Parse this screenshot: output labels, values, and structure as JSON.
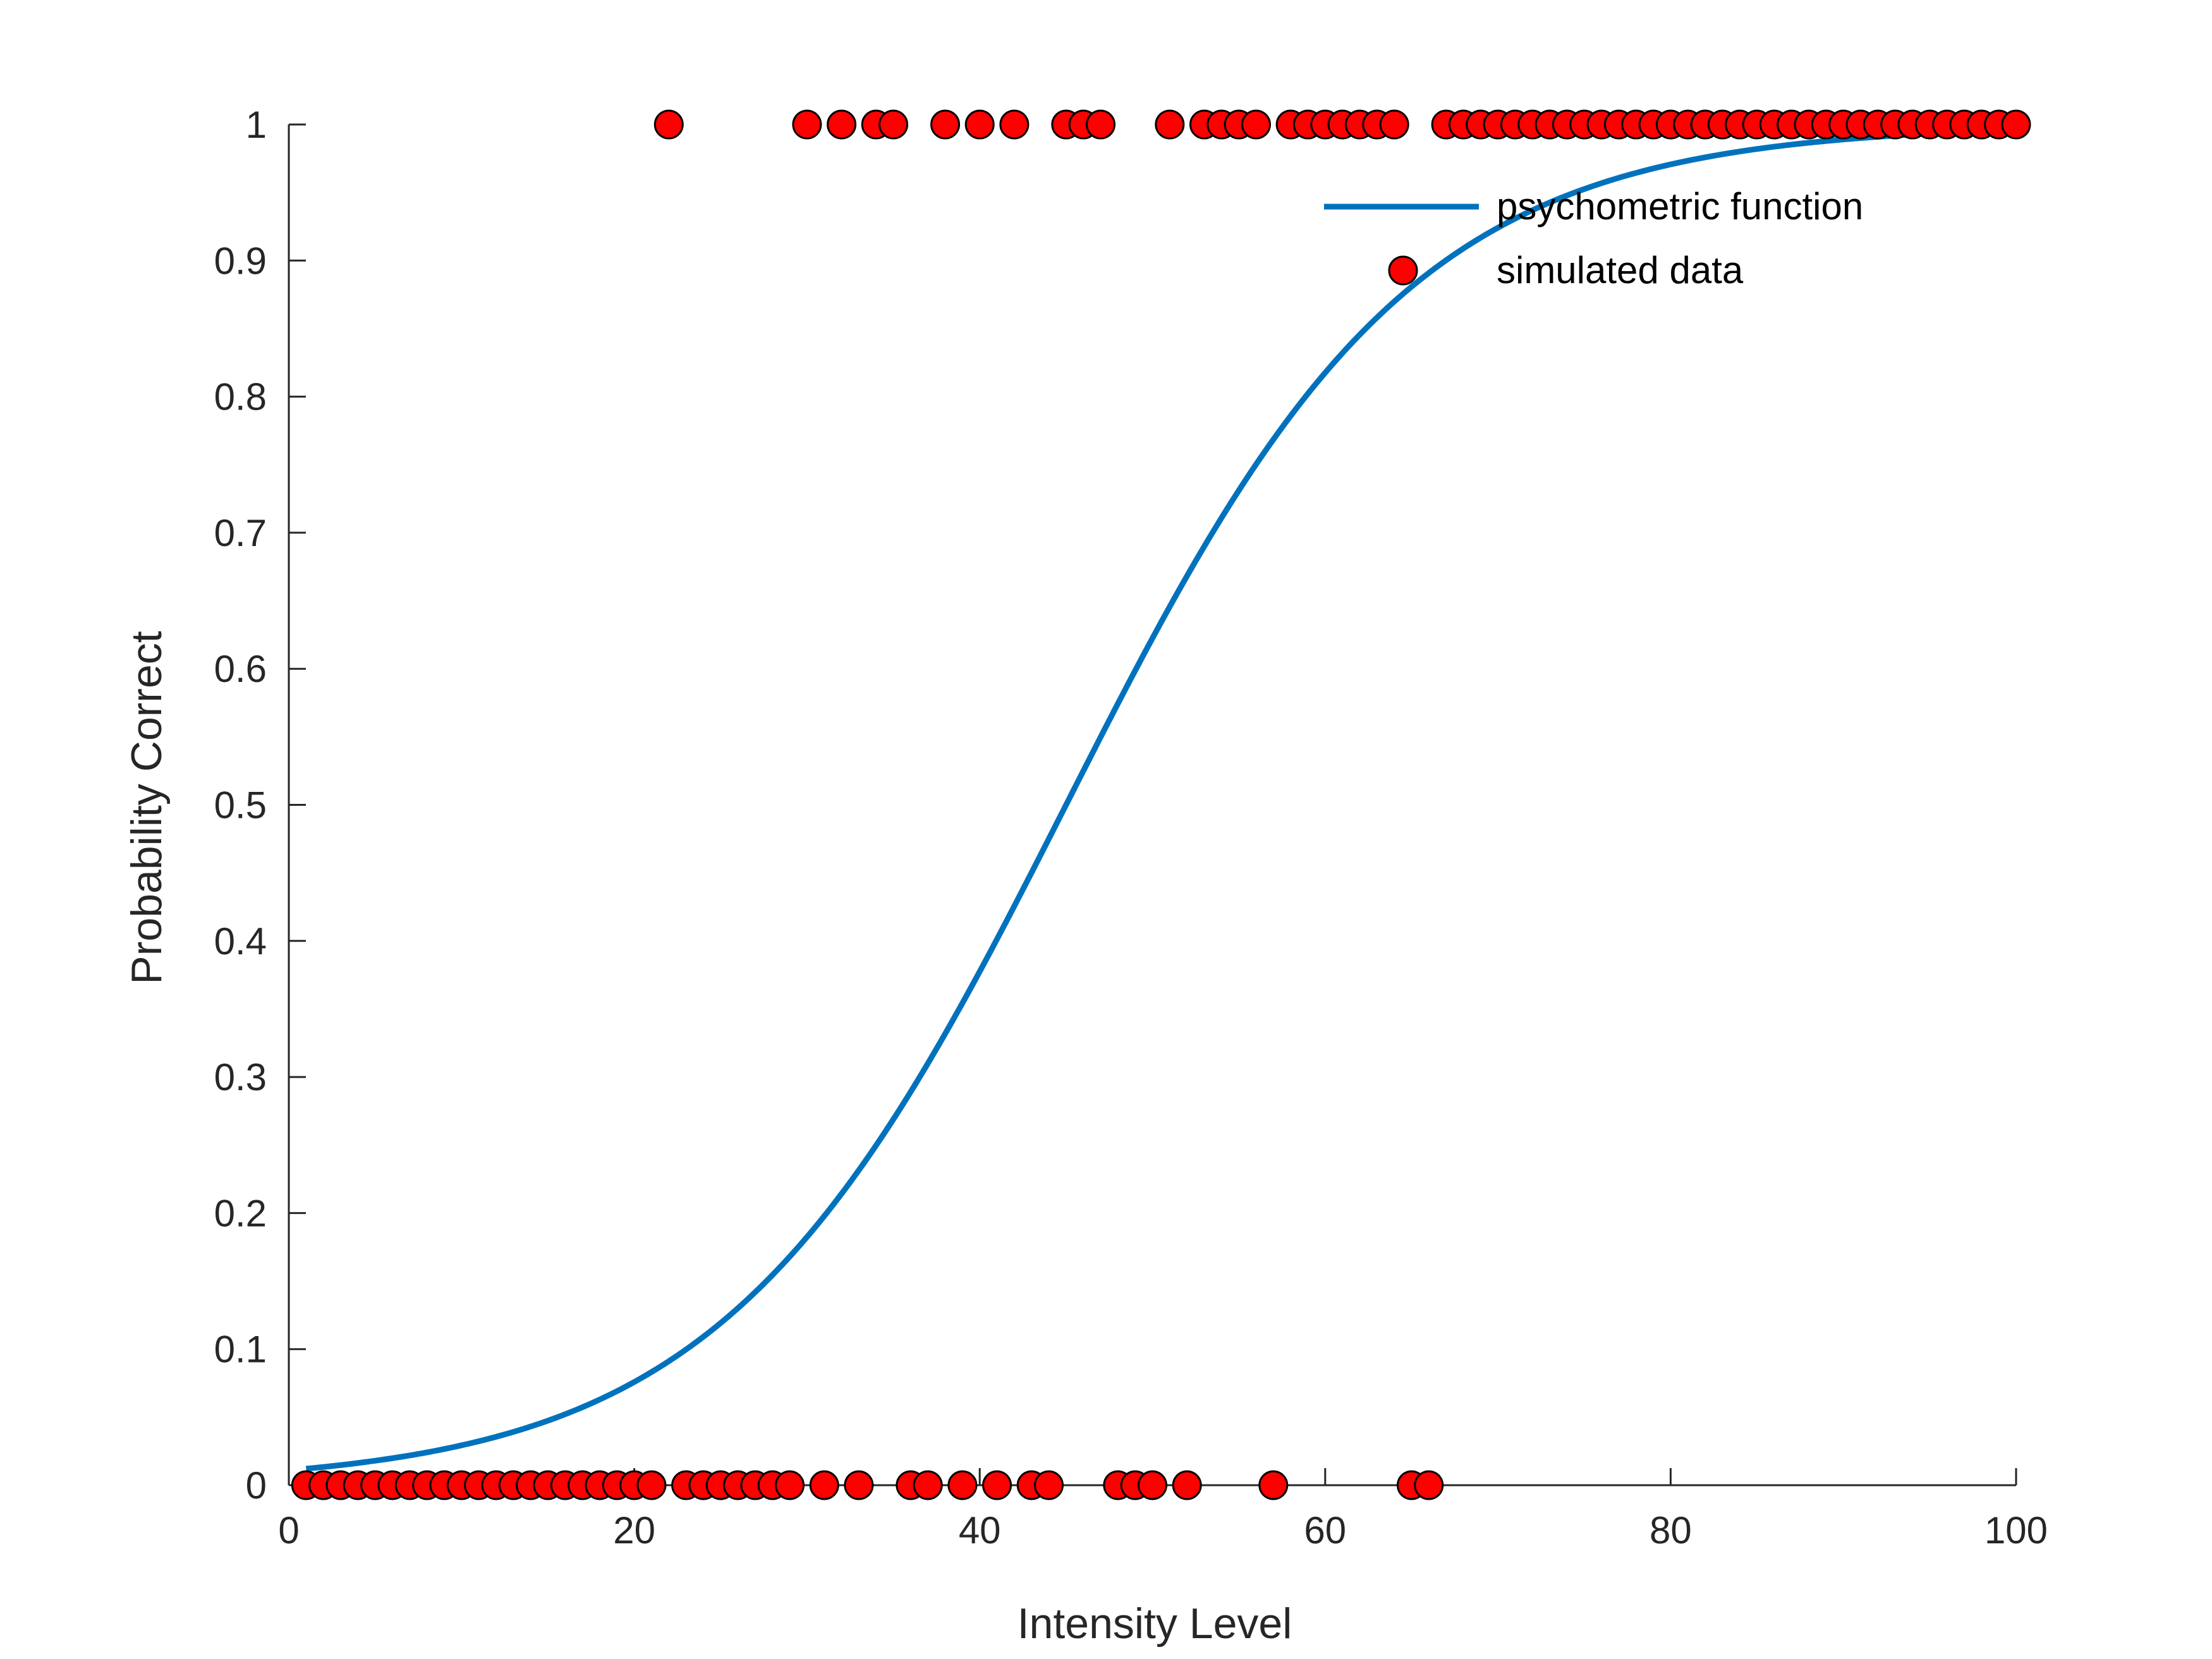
{
  "chart_data": {
    "type": "scatter",
    "title": "",
    "xlabel": "Intensity Level",
    "ylabel": "Probability Correct",
    "xlim": [
      0,
      100
    ],
    "ylim": [
      0,
      1
    ],
    "xticks": [
      0,
      20,
      40,
      60,
      80,
      100
    ],
    "yticks": [
      0,
      0.1,
      0.2,
      0.3,
      0.4,
      0.5,
      0.6,
      0.7,
      0.8,
      0.9,
      1
    ],
    "grid": false,
    "legend_position": "top-right",
    "colors": {
      "curve": "#0072BD",
      "points": "#FF0000",
      "point_edge": "#000000",
      "axis": "#262626"
    },
    "series": [
      {
        "name": "psychometric function",
        "kind": "line",
        "model": {
          "type": "logistic",
          "midpoint": 45,
          "slope": 0.1
        },
        "x_range": [
          1,
          100
        ]
      },
      {
        "name": "simulated data",
        "kind": "scatter",
        "x_correct": [
          22,
          30,
          32,
          34,
          35,
          38,
          40,
          42,
          45,
          46,
          47,
          51,
          53,
          54,
          55,
          56,
          58,
          59,
          60,
          61,
          62,
          63,
          64,
          67,
          68,
          69,
          70,
          71,
          72,
          73,
          74,
          75,
          76,
          77,
          78,
          79,
          80,
          81,
          82,
          83,
          84,
          85,
          86,
          87,
          88,
          89,
          90,
          91,
          92,
          93,
          94,
          95,
          96,
          97,
          98,
          99,
          100
        ],
        "y_correct": 1,
        "x_incorrect": [
          1,
          2,
          3,
          4,
          5,
          6,
          7,
          8,
          9,
          10,
          11,
          12,
          13,
          14,
          15,
          16,
          17,
          18,
          19,
          20,
          21,
          23,
          24,
          25,
          26,
          27,
          28,
          29,
          31,
          33,
          36,
          37,
          39,
          41,
          43,
          44,
          48,
          49,
          50,
          52,
          57,
          65,
          66
        ],
        "y_incorrect": 0
      }
    ]
  }
}
